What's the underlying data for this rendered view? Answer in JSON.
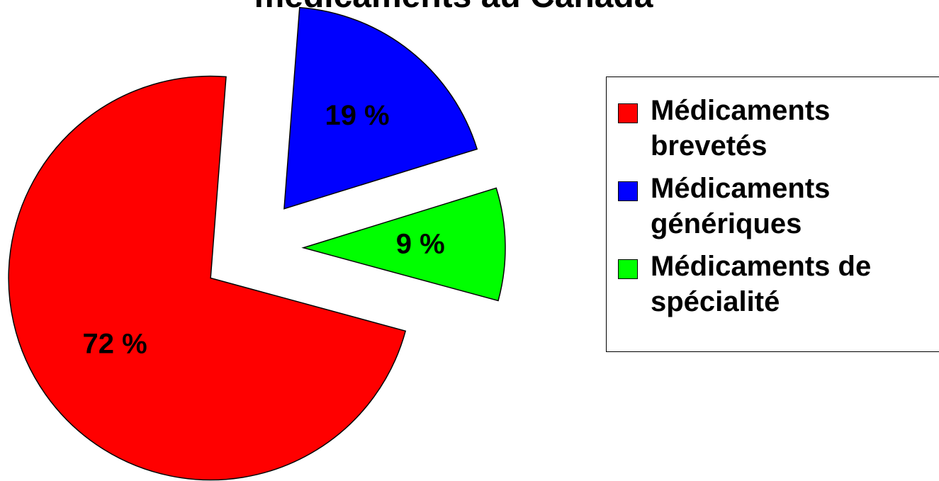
{
  "chart_data": {
    "type": "pie",
    "title": "médicaments au Canada",
    "categories": [
      "Médicaments génériques",
      "Médicaments de spécialité",
      "Médicaments brevetés"
    ],
    "values": [
      19,
      9,
      72
    ],
    "value_labels": [
      "19 %",
      "9 %",
      "72 %"
    ],
    "colors": [
      "#0000ff",
      "#00ff00",
      "#ff0000"
    ],
    "legend_order": [
      2,
      0,
      1
    ],
    "legend": "right"
  }
}
